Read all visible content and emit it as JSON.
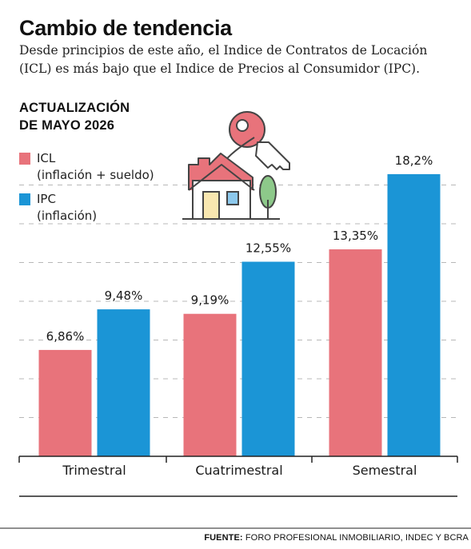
{
  "header": {
    "title": "Cambio de tendencia",
    "subtitle": "Desde principios de este año, el Indice de Contratos de Locación (ICL) es más bajo que el Indice de Precios al Consumidor (IPC).",
    "section_line1": "ACTUALIZACIÓN",
    "section_line2": "DE MAYO 2026"
  },
  "legend": [
    {
      "name": "ICL",
      "desc": "(inflación + sueldo)",
      "color": "#e8737b"
    },
    {
      "name": "IPC",
      "desc": "(inflación)",
      "color": "#1b95d6"
    }
  ],
  "illustration": {
    "icon": "house-key-icon"
  },
  "colors": {
    "icl": "#e8737b",
    "ipc": "#1b95d6",
    "grid": "#b8b8b8"
  },
  "chart_data": {
    "type": "bar",
    "categories": [
      "Trimestral",
      "Cuatrimestral",
      "Semestral"
    ],
    "series": [
      {
        "name": "ICL",
        "values": [
          6.86,
          9.19,
          13.35
        ],
        "labels": [
          "6,86%",
          "9,19%",
          "13,35%"
        ]
      },
      {
        "name": "IPC",
        "values": [
          9.48,
          12.55,
          18.2
        ],
        "labels": [
          "9,48%",
          "12,55%",
          "18,2%"
        ]
      }
    ],
    "ylim": [
      0,
      20
    ],
    "grid": true,
    "legend": "top-left"
  },
  "footer": {
    "source_label": "FUENTE:",
    "source_text": " FORO PROFESIONAL INMOBILIARIO, INDEC Y BCRA"
  }
}
